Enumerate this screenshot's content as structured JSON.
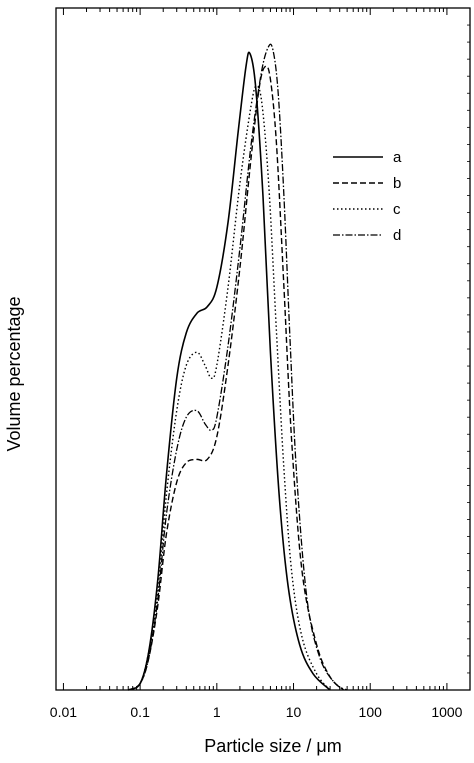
{
  "chart_data": {
    "type": "line",
    "xlabel": "Particle size / μm",
    "ylabel": "Volume percentage",
    "x_scale": "log",
    "xlim": [
      0.008,
      2000
    ],
    "ylim": [
      0,
      1.05
    ],
    "x_ticks": [
      "0.01",
      "0.1",
      "1",
      "10",
      "100",
      "1000"
    ],
    "x_tick_values": [
      0.01,
      0.1,
      1,
      10,
      100,
      1000
    ],
    "y_ticks_labeled": false,
    "grid": false,
    "legend_position": "upper-right",
    "series": [
      {
        "name": "a",
        "style": "solid",
        "points": [
          [
            0.07,
            0
          ],
          [
            0.1,
            0.01
          ],
          [
            0.13,
            0.06
          ],
          [
            0.17,
            0.17
          ],
          [
            0.22,
            0.33
          ],
          [
            0.3,
            0.48
          ],
          [
            0.4,
            0.55
          ],
          [
            0.55,
            0.58
          ],
          [
            0.75,
            0.59
          ],
          [
            1.0,
            0.62
          ],
          [
            1.4,
            0.72
          ],
          [
            1.9,
            0.86
          ],
          [
            2.4,
            0.96
          ],
          [
            2.7,
            0.98
          ],
          [
            3.2,
            0.93
          ],
          [
            4.0,
            0.76
          ],
          [
            5.0,
            0.52
          ],
          [
            6.5,
            0.3
          ],
          [
            8.5,
            0.16
          ],
          [
            12,
            0.07
          ],
          [
            18,
            0.025
          ],
          [
            30,
            0
          ]
        ]
      },
      {
        "name": "b",
        "style": "dashed",
        "points": [
          [
            0.07,
            0
          ],
          [
            0.1,
            0.01
          ],
          [
            0.13,
            0.05
          ],
          [
            0.17,
            0.13
          ],
          [
            0.22,
            0.24
          ],
          [
            0.3,
            0.32
          ],
          [
            0.4,
            0.35
          ],
          [
            0.55,
            0.355
          ],
          [
            0.75,
            0.355
          ],
          [
            1.0,
            0.39
          ],
          [
            1.4,
            0.5
          ],
          [
            2.0,
            0.65
          ],
          [
            2.8,
            0.82
          ],
          [
            3.6,
            0.93
          ],
          [
            4.3,
            0.96
          ],
          [
            5.0,
            0.94
          ],
          [
            6.0,
            0.84
          ],
          [
            7.5,
            0.62
          ],
          [
            9.5,
            0.38
          ],
          [
            13,
            0.18
          ],
          [
            20,
            0.07
          ],
          [
            30,
            0.02
          ],
          [
            45,
            0
          ]
        ]
      },
      {
        "name": "c",
        "style": "dotted",
        "points": [
          [
            0.07,
            0
          ],
          [
            0.1,
            0.01
          ],
          [
            0.13,
            0.06
          ],
          [
            0.17,
            0.15
          ],
          [
            0.22,
            0.3
          ],
          [
            0.3,
            0.43
          ],
          [
            0.4,
            0.5
          ],
          [
            0.55,
            0.52
          ],
          [
            0.7,
            0.5
          ],
          [
            0.85,
            0.48
          ],
          [
            1.0,
            0.5
          ],
          [
            1.4,
            0.62
          ],
          [
            2.0,
            0.78
          ],
          [
            2.8,
            0.9
          ],
          [
            3.3,
            0.93
          ],
          [
            3.9,
            0.9
          ],
          [
            4.8,
            0.77
          ],
          [
            6.0,
            0.55
          ],
          [
            7.5,
            0.34
          ],
          [
            9.5,
            0.18
          ],
          [
            13,
            0.08
          ],
          [
            20,
            0.025
          ],
          [
            30,
            0
          ]
        ]
      },
      {
        "name": "d",
        "style": "dashdot",
        "points": [
          [
            0.07,
            0
          ],
          [
            0.1,
            0.01
          ],
          [
            0.13,
            0.05
          ],
          [
            0.17,
            0.14
          ],
          [
            0.22,
            0.27
          ],
          [
            0.3,
            0.37
          ],
          [
            0.4,
            0.42
          ],
          [
            0.55,
            0.43
          ],
          [
            0.7,
            0.41
          ],
          [
            0.85,
            0.4
          ],
          [
            1.0,
            0.42
          ],
          [
            1.4,
            0.53
          ],
          [
            2.0,
            0.68
          ],
          [
            2.8,
            0.84
          ],
          [
            3.8,
            0.95
          ],
          [
            4.7,
            0.99
          ],
          [
            5.4,
            0.985
          ],
          [
            6.3,
            0.92
          ],
          [
            7.5,
            0.76
          ],
          [
            9,
            0.54
          ],
          [
            11,
            0.33
          ],
          [
            15,
            0.14
          ],
          [
            22,
            0.05
          ],
          [
            35,
            0.01
          ],
          [
            50,
            0
          ]
        ]
      }
    ]
  }
}
